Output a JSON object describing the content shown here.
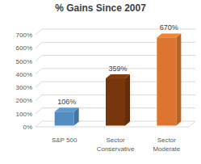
{
  "chart_data": {
    "type": "bar",
    "title": "% Gains Since 2007",
    "categories": [
      "S&P 500",
      "Sector Conservative",
      "Sector Moderate"
    ],
    "values": [
      106,
      359,
      670
    ],
    "value_labels": [
      "106%",
      "359%",
      "670%"
    ],
    "colors": [
      "#5b9bd5",
      "#843c0c",
      "#f58233"
    ],
    "ylim": [
      0,
      700
    ],
    "yticks": [
      {
        "value": 0,
        "label": "0%"
      },
      {
        "value": 100,
        "label": "100%"
      },
      {
        "value": 200,
        "label": "200%"
      },
      {
        "value": 300,
        "label": "300%"
      },
      {
        "value": 400,
        "label": "400%"
      },
      {
        "value": 500,
        "label": "500%"
      },
      {
        "value": 600,
        "label": "600%"
      },
      {
        "value": 700,
        "label": "700%"
      }
    ],
    "grid": true,
    "data_labels": true
  }
}
